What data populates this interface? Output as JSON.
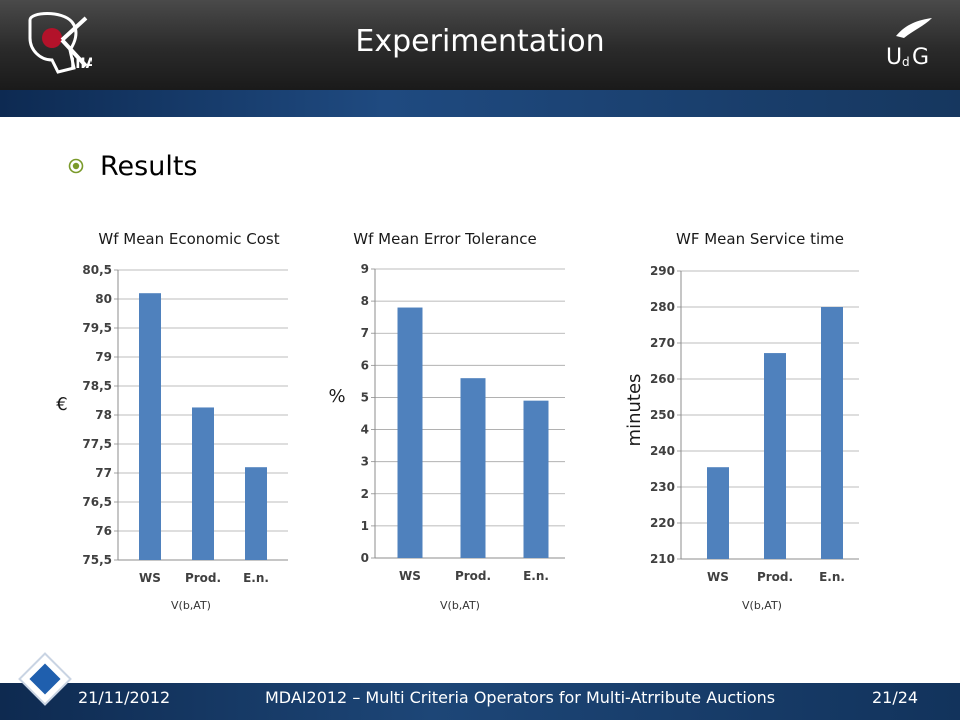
{
  "header": {
    "title": "Experimentation"
  },
  "section": {
    "label": "Results"
  },
  "footer": {
    "date": "21/11/2012",
    "conference": "MDAI2012 – Multi Criteria Operators for Multi-Atrribute Auctions",
    "page": "21/24"
  },
  "colors": {
    "bar": "#4f81bd",
    "header": "#2a2a2a",
    "band": "#1f4a80"
  },
  "chart_data": [
    {
      "type": "bar",
      "title": "Wf Mean Economic Cost",
      "xlabel": "V(b,AT)",
      "ylabel": "€",
      "categories": [
        "WS",
        "Prod.",
        "E.n."
      ],
      "values": [
        80.1,
        78.13,
        77.1
      ],
      "ylim": [
        75.5,
        80.5
      ],
      "ticks": [
        75.5,
        76,
        76.5,
        77,
        77.5,
        78,
        78.5,
        79,
        79.5,
        80,
        80.5
      ],
      "tick_labels": [
        "75,5",
        "76",
        "76,5",
        "77",
        "77,5",
        "78",
        "78,5",
        "79",
        "79,5",
        "80",
        "80,5"
      ],
      "grid": true
    },
    {
      "type": "bar",
      "title": "Wf Mean Error Tolerance",
      "xlabel": "V(b,AT)",
      "ylabel": "%",
      "categories": [
        "WS",
        "Prod.",
        "E.n."
      ],
      "values": [
        7.8,
        5.6,
        4.9
      ],
      "ylim": [
        0,
        9
      ],
      "ticks": [
        0,
        1,
        2,
        3,
        4,
        5,
        6,
        7,
        8,
        9
      ],
      "tick_labels": [
        "0",
        "1",
        "2",
        "3",
        "4",
        "5",
        "6",
        "7",
        "8",
        "9"
      ],
      "grid": true
    },
    {
      "type": "bar",
      "title": "WF Mean Service time",
      "xlabel": "V(b,AT)",
      "ylabel": "minutes",
      "categories": [
        "WS",
        "Prod.",
        "E.n."
      ],
      "values": [
        235.5,
        267.2,
        280
      ],
      "ylim": [
        210,
        290
      ],
      "ticks": [
        210,
        220,
        230,
        240,
        250,
        260,
        270,
        280,
        290
      ],
      "tick_labels": [
        "210",
        "220",
        "230",
        "240",
        "250",
        "260",
        "270",
        "280",
        "290"
      ],
      "grid": true
    }
  ]
}
